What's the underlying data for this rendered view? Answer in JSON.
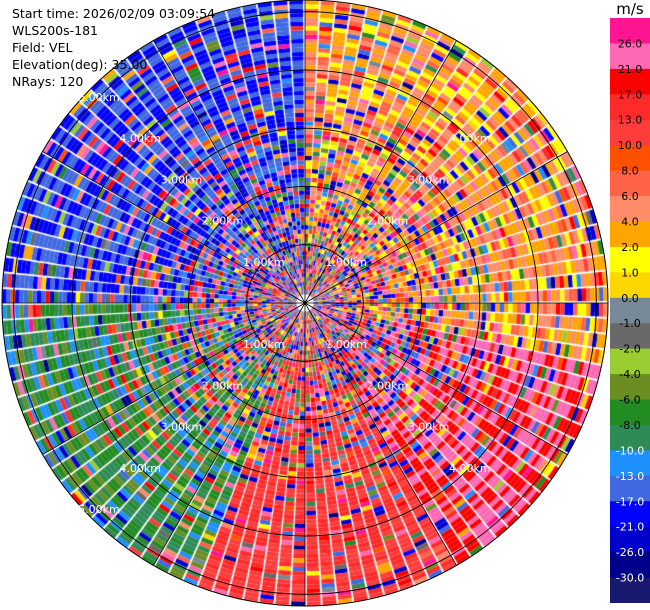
{
  "header": {
    "start_time": "Start time: 2026/02/09 03:09:54",
    "instrument": "WLS200s-181",
    "field": "Field: VEL",
    "elevation": "Elevation(deg): 35.00",
    "nrays": "NRays: 120"
  },
  "chart_data": {
    "type": "heatmap",
    "subtype": "polar PPI",
    "field": "VEL",
    "n_rays": 120,
    "elevation_deg": 35.0,
    "range_rings_km": [
      1.0,
      2.0,
      3.0,
      4.0,
      5.0
    ],
    "range_labels": [
      "1.00km",
      "2.00km",
      "3.00km",
      "4.00km",
      "5.00km"
    ],
    "max_range_km": 5.2,
    "colorbar": {
      "unit": "m/s",
      "tick_labels": [
        "26.0",
        "21.0",
        "17.0",
        "13.0",
        "10.0",
        "8.0",
        "6.0",
        "4.0",
        "2.0",
        "1.0",
        "0.0",
        "-1.0",
        "-2.0",
        "-4.0",
        "-6.0",
        "-8.0",
        "-10.0",
        "-13.0",
        "-17.0",
        "-21.0",
        "-26.0",
        "-30.0"
      ],
      "colors": [
        "#ff1493",
        "#ff69b4",
        "#ff0000",
        "#ff2a2a",
        "#ff3c3c",
        "#ff5000",
        "#ff6347",
        "#ff8c69",
        "#ffa500",
        "#ffff00",
        "#ffd700",
        "#778899",
        "#696969",
        "#9acd32",
        "#6b8e23",
        "#228b22",
        "#2e8b57",
        "#1e90ff",
        "#4169e1",
        "#0000ff",
        "#0000cd",
        "#00008b",
        "#191970"
      ]
    },
    "sector_dominant_velocity": [
      {
        "azimuth_range_deg": [
          270,
          360
        ],
        "velocity_ms": -17.0
      },
      {
        "azimuth_range_deg": [
          200,
          270
        ],
        "velocity_ms": -8.0
      },
      {
        "azimuth_range_deg": [
          150,
          200
        ],
        "velocity_ms": 13.0
      },
      {
        "azimuth_range_deg": [
          100,
          150
        ],
        "velocity_ms": 21.0
      },
      {
        "azimuth_range_deg": [
          0,
          100
        ],
        "velocity_ms": 4.0
      }
    ]
  }
}
